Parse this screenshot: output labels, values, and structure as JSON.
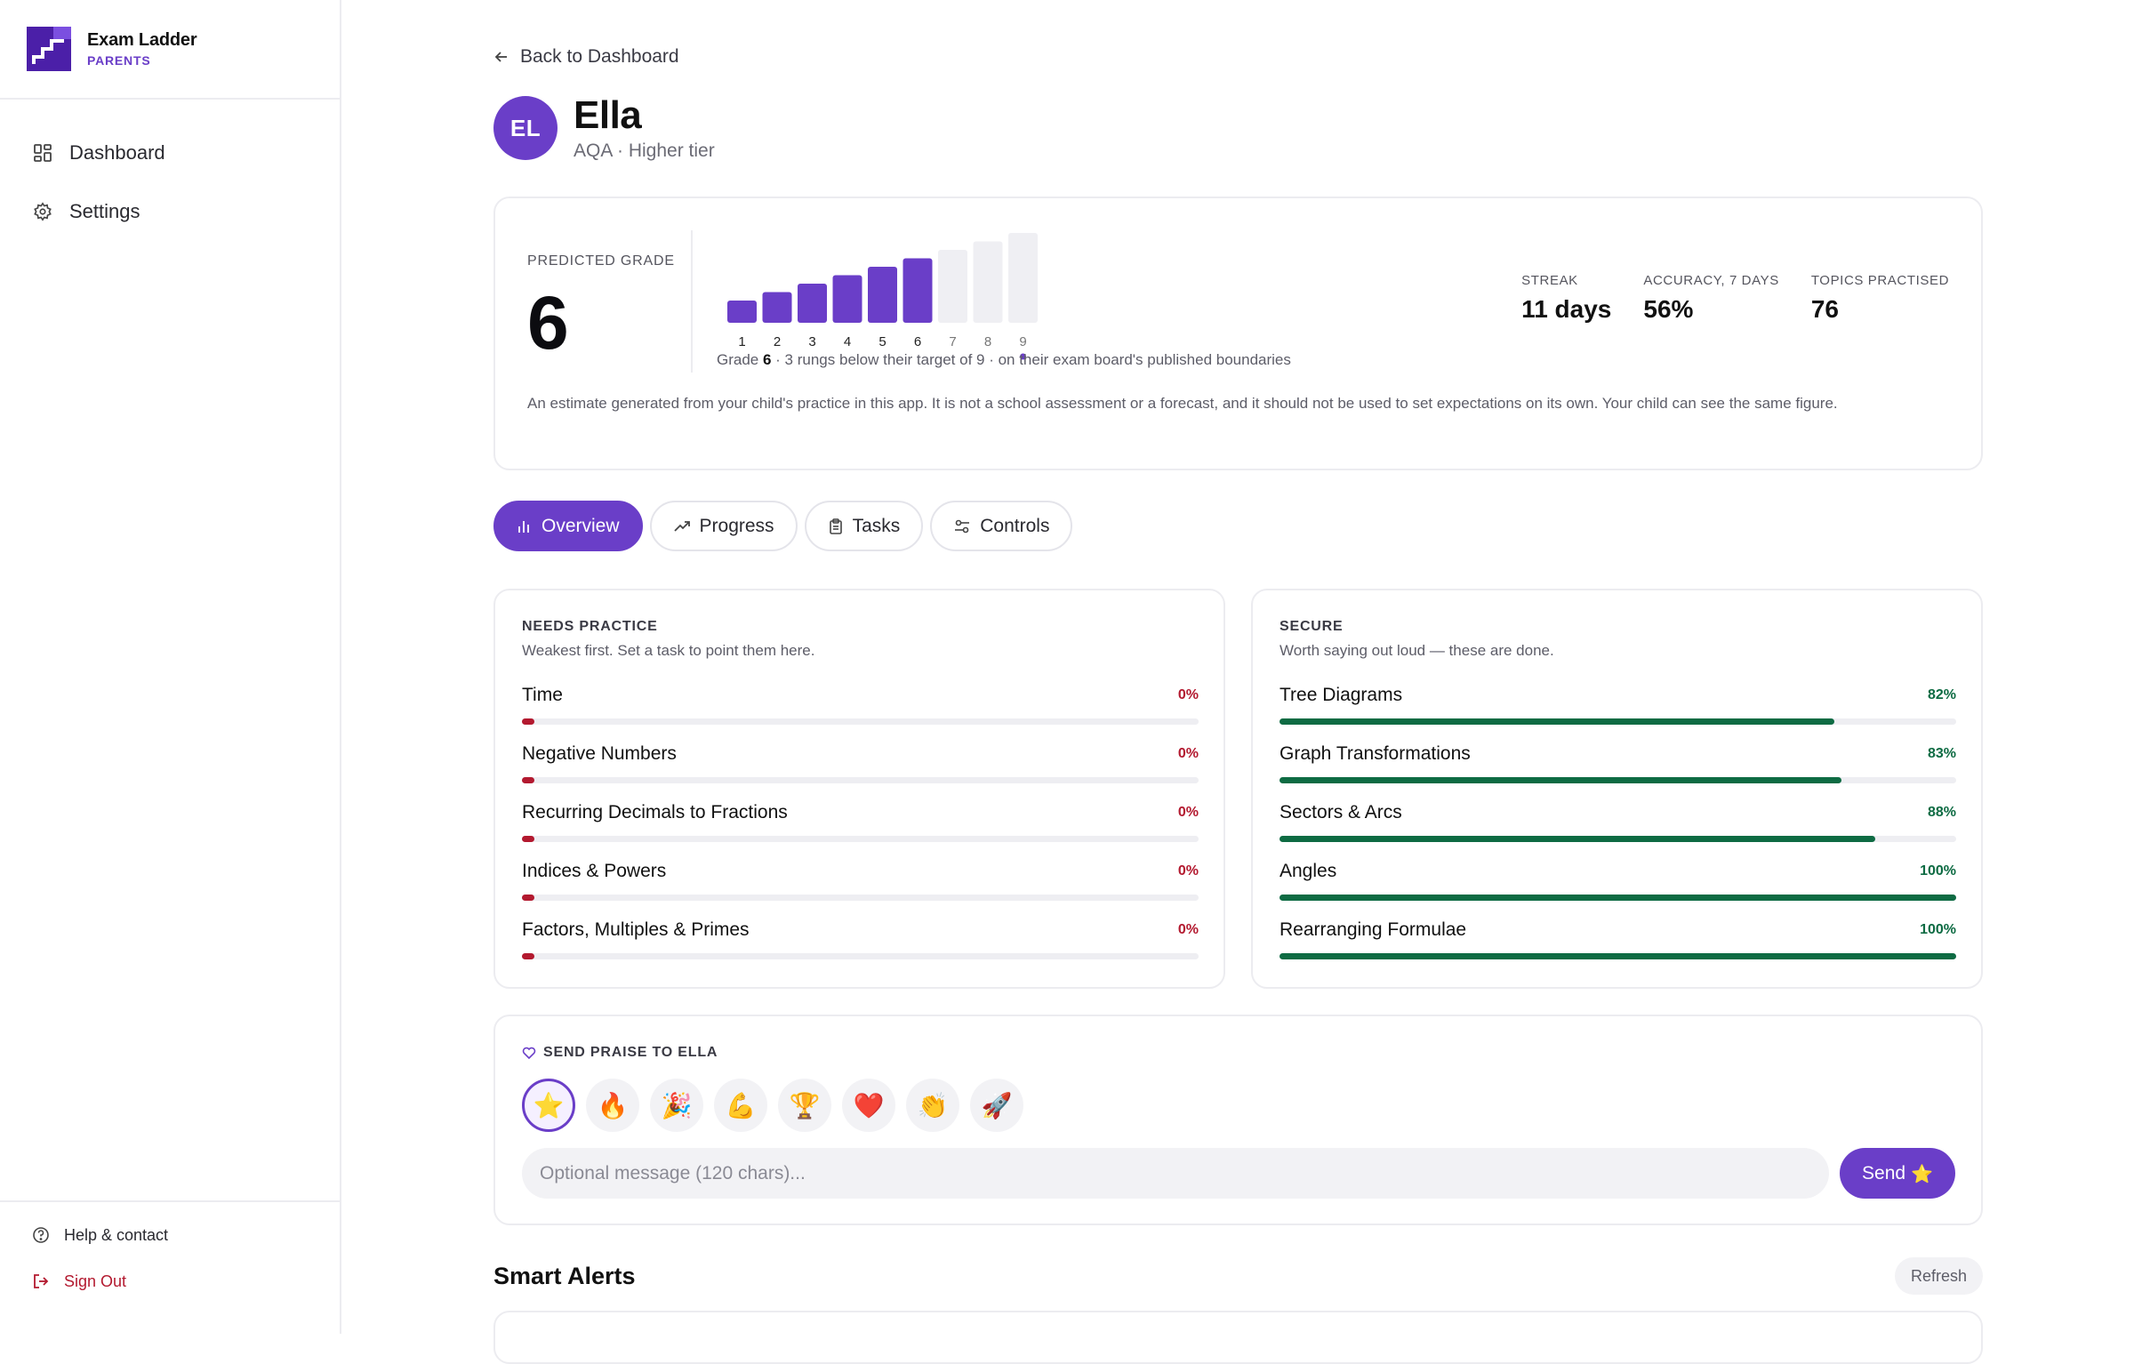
{
  "brand": {
    "name": "Exam Ladder",
    "sub": "PARENTS"
  },
  "sidebar": {
    "items": [
      {
        "label": "Dashboard",
        "icon": "grid-icon"
      },
      {
        "label": "Settings",
        "icon": "gear-icon"
      }
    ],
    "help_label": "Help & contact",
    "signout_label": "Sign Out"
  },
  "back_label": "Back to Dashboard",
  "student": {
    "initials": "EL",
    "name": "Ella",
    "tier": "AQA · Higher tier"
  },
  "grade": {
    "label": "PREDICTED GRADE",
    "value": "6",
    "rungs": [
      "1",
      "2",
      "3",
      "4",
      "5",
      "6",
      "7",
      "8",
      "9"
    ],
    "filled_through": 6,
    "target": 9,
    "caption_pre": "Grade ",
    "caption_grade": "6",
    "caption_post": " · 3 rungs below their target of 9 · on their exam board's published boundaries",
    "disclaimer": "An estimate generated from your child's practice in this app. It is not a school assessment or a forecast, and it should not be used to set expectations on its own. Your child can see the same figure."
  },
  "stats": [
    {
      "label": "STREAK",
      "value": "11 days"
    },
    {
      "label": "ACCURACY, 7 DAYS",
      "value": "56%"
    },
    {
      "label": "TOPICS PRACTISED",
      "value": "76"
    }
  ],
  "tabs": [
    {
      "label": "Overview",
      "icon": "bar-chart-icon",
      "active": true
    },
    {
      "label": "Progress",
      "icon": "trend-up-icon",
      "active": false
    },
    {
      "label": "Tasks",
      "icon": "clipboard-icon",
      "active": false
    },
    {
      "label": "Controls",
      "icon": "sliders-icon",
      "active": false
    }
  ],
  "needs_practice": {
    "title": "NEEDS PRACTICE",
    "subtitle": "Weakest first. Set a task to point them here.",
    "items": [
      {
        "name": "Time",
        "pct": "0%",
        "value": 0
      },
      {
        "name": "Negative Numbers",
        "pct": "0%",
        "value": 0
      },
      {
        "name": "Recurring Decimals to Fractions",
        "pct": "0%",
        "value": 0
      },
      {
        "name": "Indices & Powers",
        "pct": "0%",
        "value": 0
      },
      {
        "name": "Factors, Multiples & Primes",
        "pct": "0%",
        "value": 0
      }
    ]
  },
  "secure": {
    "title": "SECURE",
    "subtitle": "Worth saying out loud — these are done.",
    "items": [
      {
        "name": "Tree Diagrams",
        "pct": "82%",
        "value": 82
      },
      {
        "name": "Graph Transformations",
        "pct": "83%",
        "value": 83
      },
      {
        "name": "Sectors & Arcs",
        "pct": "88%",
        "value": 88
      },
      {
        "name": "Angles",
        "pct": "100%",
        "value": 100
      },
      {
        "name": "Rearranging Formulae",
        "pct": "100%",
        "value": 100
      }
    ]
  },
  "praise": {
    "title": "SEND PRAISE TO ELLA",
    "emojis": [
      "⭐",
      "🔥",
      "🎉",
      "💪",
      "🏆",
      "❤️",
      "👏",
      "🚀"
    ],
    "selected": 0,
    "placeholder": "Optional message (120 chars)...",
    "send_label": "Send",
    "send_icon": "⭐"
  },
  "alerts": {
    "title": "Smart Alerts",
    "refresh_label": "Refresh"
  },
  "colors": {
    "accent": "#6a3ec8",
    "weak": "#b3192f",
    "secure": "#0e6b43"
  }
}
